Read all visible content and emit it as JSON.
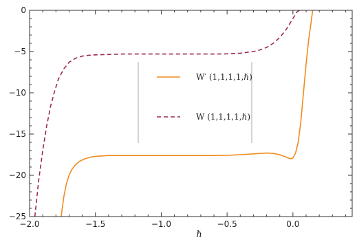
{
  "chart_data": {
    "type": "line",
    "title": "",
    "xlabel": "ℏ",
    "ylabel": "",
    "xlim": [
      -2.0,
      0.45
    ],
    "ylim": [
      -25,
      0
    ],
    "xticks": [
      -2.0,
      -1.5,
      -1.0,
      -0.5,
      0.0
    ],
    "xtick_labels": [
      "−2.0",
      "−1.5",
      "−1.0",
      "−0.5",
      "0.0"
    ],
    "yticks": [
      0,
      -5,
      -10,
      -15,
      -20,
      -25
    ],
    "ytick_labels": [
      "0",
      "−5",
      "−10",
      "−15",
      "−20",
      "−25"
    ],
    "grid": false,
    "legend_position": "center",
    "series": [
      {
        "name": "W′ (1,1,1,1,ℏ)",
        "color": "#f28b1e",
        "dash": "solid",
        "x": [
          -1.76,
          -1.74,
          -1.72,
          -1.7,
          -1.68,
          -1.65,
          -1.62,
          -1.58,
          -1.54,
          -1.5,
          -1.45,
          -1.4,
          -1.3,
          -1.2,
          -1.0,
          -0.8,
          -0.6,
          -0.5,
          -0.4,
          -0.3,
          -0.2,
          -0.15,
          -0.1,
          -0.05,
          -0.02,
          0.0,
          0.02,
          0.04,
          0.06,
          0.08,
          0.1,
          0.12,
          0.14,
          0.15
        ],
        "y": [
          -25.0,
          -22.6,
          -21.0,
          -20.0,
          -19.3,
          -18.7,
          -18.3,
          -18.0,
          -17.8,
          -17.7,
          -17.65,
          -17.6,
          -17.6,
          -17.6,
          -17.6,
          -17.6,
          -17.6,
          -17.58,
          -17.5,
          -17.4,
          -17.3,
          -17.35,
          -17.5,
          -17.8,
          -18.0,
          -17.9,
          -17.3,
          -16.0,
          -13.5,
          -10.0,
          -6.5,
          -3.5,
          -1.2,
          0.0
        ]
      },
      {
        "name": "W (1,1,1,1,ℏ)",
        "color": "#9c2a4e",
        "dash": "dashed",
        "x": [
          -1.96,
          -1.95,
          -1.93,
          -1.9,
          -1.87,
          -1.84,
          -1.81,
          -1.78,
          -1.74,
          -1.7,
          -1.65,
          -1.6,
          -1.55,
          -1.5,
          -1.4,
          -1.3,
          -1.2,
          -1.0,
          -0.8,
          -0.6,
          -0.5,
          -0.4,
          -0.3,
          -0.25,
          -0.2,
          -0.15,
          -0.1,
          -0.05,
          0.0,
          0.03,
          0.05,
          0.07
        ],
        "y": [
          -25.0,
          -23.5,
          -20.5,
          -17.0,
          -14.0,
          -11.6,
          -9.8,
          -8.3,
          -7.1,
          -6.3,
          -5.8,
          -5.55,
          -5.45,
          -5.4,
          -5.35,
          -5.3,
          -5.3,
          -5.3,
          -5.3,
          -5.3,
          -5.28,
          -5.2,
          -5.0,
          -4.8,
          -4.5,
          -4.0,
          -3.3,
          -2.3,
          -1.0,
          -0.2,
          0.0,
          0.0
        ]
      }
    ]
  }
}
